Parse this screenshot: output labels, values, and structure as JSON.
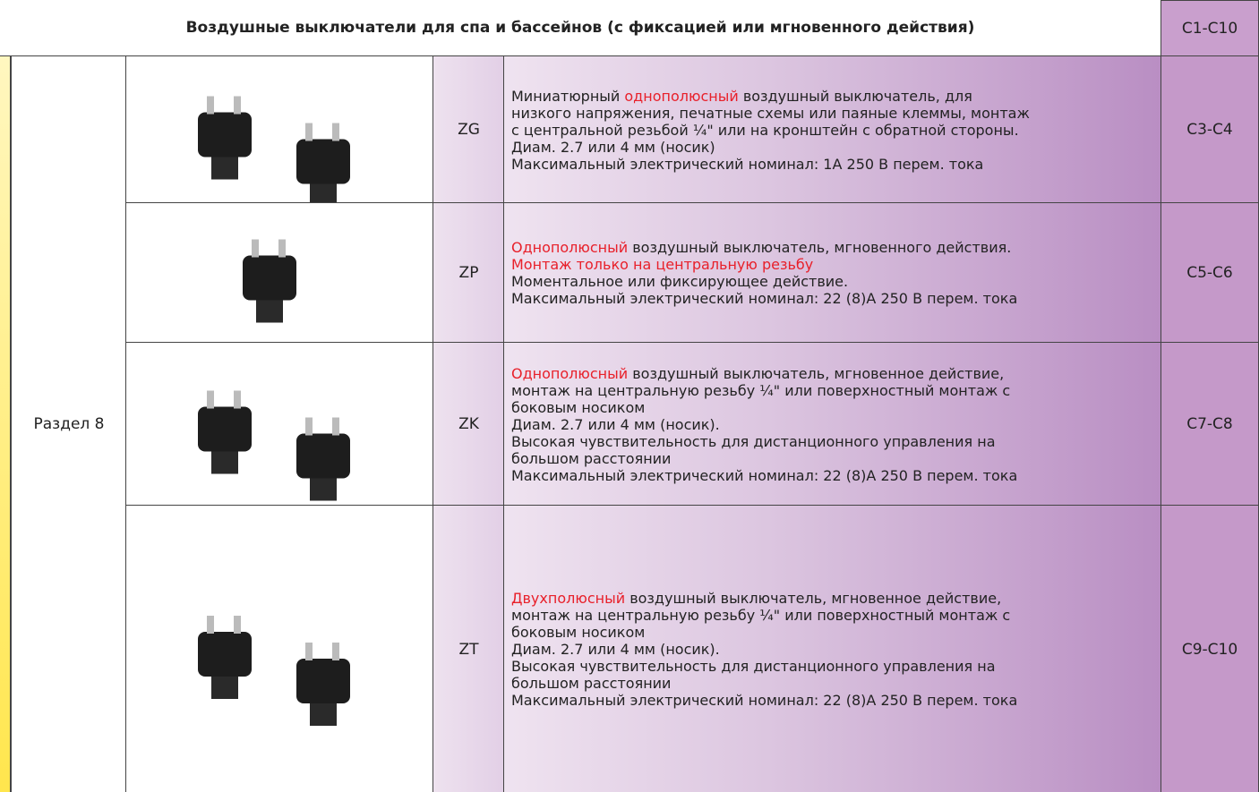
{
  "header": {
    "title": "Воздушные выключатели для спа и бассейнов (с фиксацией или мгновенного действия)",
    "pages": "C1-C10"
  },
  "section": "Раздел 8",
  "rows": [
    {
      "code": "ZG",
      "pages": "C3-C4",
      "description": [
        [
          "Миниатюрный ",
          {
            "text": "однополюсный",
            "color": "#e8202a"
          },
          " воздушный выключатель, для"
        ],
        [
          "низкого напряжения, печатные схемы или паяные клеммы, монтаж"
        ],
        [
          "с центральной резьбой ¼\" или на кронштейн с обратной стороны."
        ],
        [
          "Диам. 2.7 или 4 мм (носик)"
        ],
        [
          "Максимальный электрический номинал: 1А 250 В перем. тока"
        ]
      ]
    },
    {
      "code": "ZP",
      "pages": "C5-C6",
      "description": [
        [
          {
            "text": "Однополюсный",
            "color": "#e8202a"
          },
          " воздушный выключатель, мгновенного действия."
        ],
        [
          {
            "text": "Монтаж только на центральную резьбу",
            "color": "#e8202a"
          }
        ],
        [
          "Моментальное или фиксирующее действие."
        ],
        [
          "Максимальный электрический номинал: 22 (8)А 250 В перем. тока"
        ]
      ]
    },
    {
      "code": "ZK",
      "pages": "C7-C8",
      "description": [
        [
          {
            "text": "Однополюсный",
            "color": "#e8202a"
          },
          " воздушный выключатель, мгновенное действие,"
        ],
        [
          "монтаж на центральную резьбу ¼\" или поверхностный монтаж с"
        ],
        [
          "боковым носиком"
        ],
        [
          "Диам. 2.7 или 4 мм (носик)."
        ],
        [
          "Высокая чувствительность для дистанционного управления на"
        ],
        [
          "большом расстоянии"
        ],
        [
          "Максимальный электрический номинал: 22 (8)А 250 В перем. тока"
        ]
      ]
    },
    {
      "code": "ZT",
      "pages": "C9-C10",
      "description": [
        [
          {
            "text": "Двухполюсный",
            "color": "#e8202a"
          },
          " воздушный выключатель, мгновенное действие,"
        ],
        [
          "монтаж на центральную резьбу ¼\" или поверхностный монтаж с"
        ],
        [
          "боковым носиком"
        ],
        [
          "Диам. 2.7 или 4 мм (носик)."
        ],
        [
          "Высокая чувствительность для дистанционного управления на"
        ],
        [
          "большом расстоянии"
        ],
        [
          "Максимальный электрический номинал: 22 (8)А 250 В перем. тока"
        ]
      ]
    }
  ]
}
